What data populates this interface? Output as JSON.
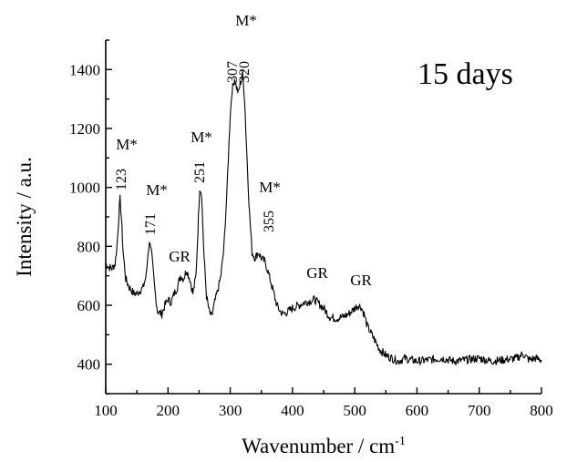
{
  "chart_data": {
    "type": "line",
    "title": "",
    "annotation_main": "15 days",
    "xlabel": "Wavenumber / cm",
    "xlabel_sup": "-1",
    "ylabel": "Intensity / a.u.",
    "xlim": [
      100,
      800
    ],
    "ylim": [
      300,
      1500
    ],
    "xticks": [
      100,
      200,
      300,
      400,
      500,
      600,
      700,
      800
    ],
    "yticks": [
      400,
      600,
      800,
      1000,
      1200,
      1400
    ],
    "grid": false,
    "series": [
      {
        "x": [
          100,
          105,
          110,
          115,
          118,
          121,
          123,
          125,
          128,
          132,
          138,
          145,
          150,
          155,
          160,
          165,
          168,
          171,
          174,
          178,
          183,
          190,
          195,
          200,
          205,
          210,
          215,
          220,
          225,
          230,
          235,
          240,
          245,
          248,
          251,
          254,
          258,
          262,
          266,
          270,
          275,
          280,
          285,
          290,
          295,
          300,
          303,
          307,
          310,
          313,
          316,
          320,
          323,
          326,
          330,
          335,
          340,
          345,
          350,
          355,
          360,
          365,
          370,
          375,
          380,
          385,
          390,
          400,
          410,
          420,
          430,
          435,
          440,
          445,
          450,
          460,
          470,
          480,
          490,
          500,
          505,
          510,
          515,
          520,
          530,
          540,
          550,
          560,
          570,
          580,
          600,
          620,
          640,
          660,
          680,
          700,
          720,
          740,
          760,
          770,
          780,
          790,
          800
        ],
        "y": [
          740,
          730,
          725,
          740,
          800,
          900,
          960,
          900,
          780,
          690,
          660,
          640,
          640,
          650,
          660,
          700,
          780,
          820,
          770,
          670,
          580,
          570,
          600,
          620,
          610,
          640,
          660,
          700,
          690,
          720,
          690,
          640,
          700,
          850,
          1000,
          980,
          760,
          630,
          580,
          560,
          610,
          650,
          700,
          800,
          1000,
          1250,
          1330,
          1370,
          1340,
          1320,
          1350,
          1385,
          1300,
          1150,
          950,
          780,
          760,
          780,
          760,
          750,
          720,
          680,
          640,
          600,
          580,
          570,
          575,
          590,
          600,
          610,
          615,
          620,
          610,
          600,
          590,
          560,
          555,
          560,
          570,
          590,
          600,
          595,
          570,
          530,
          490,
          450,
          430,
          420,
          410,
          420,
          410,
          415,
          420,
          410,
          415,
          420,
          410,
          415,
          420,
          435,
          415,
          420,
          415
        ]
      }
    ],
    "annotations": [
      {
        "label": "M*",
        "value": "123",
        "x": 123,
        "y": 960
      },
      {
        "label": "M*",
        "value": "171",
        "x": 171,
        "y": 820
      },
      {
        "label": "GR",
        "value": "",
        "x": 218,
        "y": 700
      },
      {
        "label": "M*",
        "value": "251",
        "x": 251,
        "y": 1000
      },
      {
        "label": "M*",
        "value": "307",
        "x": 307,
        "y": 1370
      },
      {
        "label": "",
        "value": "320",
        "x": 320,
        "y": 1385
      },
      {
        "label": "M*",
        "value": "355",
        "x": 355,
        "y": 760
      },
      {
        "label": "GR",
        "value": "",
        "x": 435,
        "y": 620
      },
      {
        "label": "GR",
        "value": "",
        "x": 505,
        "y": 600
      }
    ]
  }
}
